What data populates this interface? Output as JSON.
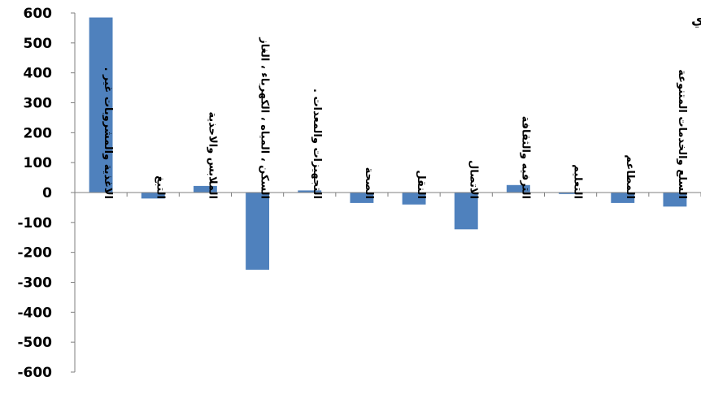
{
  "chart_data": {
    "type": "bar",
    "title": "نسبة المساهمة للأقسام الرئيسة في معدل التضخم السنوي",
    "xlabel": "",
    "ylabel": "",
    "ylim": [
      -600,
      600
    ],
    "yticks": [
      600,
      500,
      400,
      300,
      200,
      100,
      0,
      -100,
      -200,
      -300,
      -400,
      -500,
      -600
    ],
    "grid": false,
    "legend": "none",
    "bar_color": "#4F81BD",
    "categories": [
      "الاغذية والمشروبات غير .",
      "التبغ",
      "الملابس والاحذية",
      "السكن ، المياه ، الكهرباء ، الغاز",
      "التجهيزات والمعدات .",
      "الصحة",
      "النقل",
      "الاتصال",
      "الترفيه والثقافة",
      "التعليم",
      "المطاعم",
      "السلع والخدمات المتنوعة"
    ],
    "values": [
      585,
      -20,
      22,
      -258,
      7,
      -35,
      -40,
      -123,
      25,
      -5,
      -35,
      -47
    ]
  }
}
